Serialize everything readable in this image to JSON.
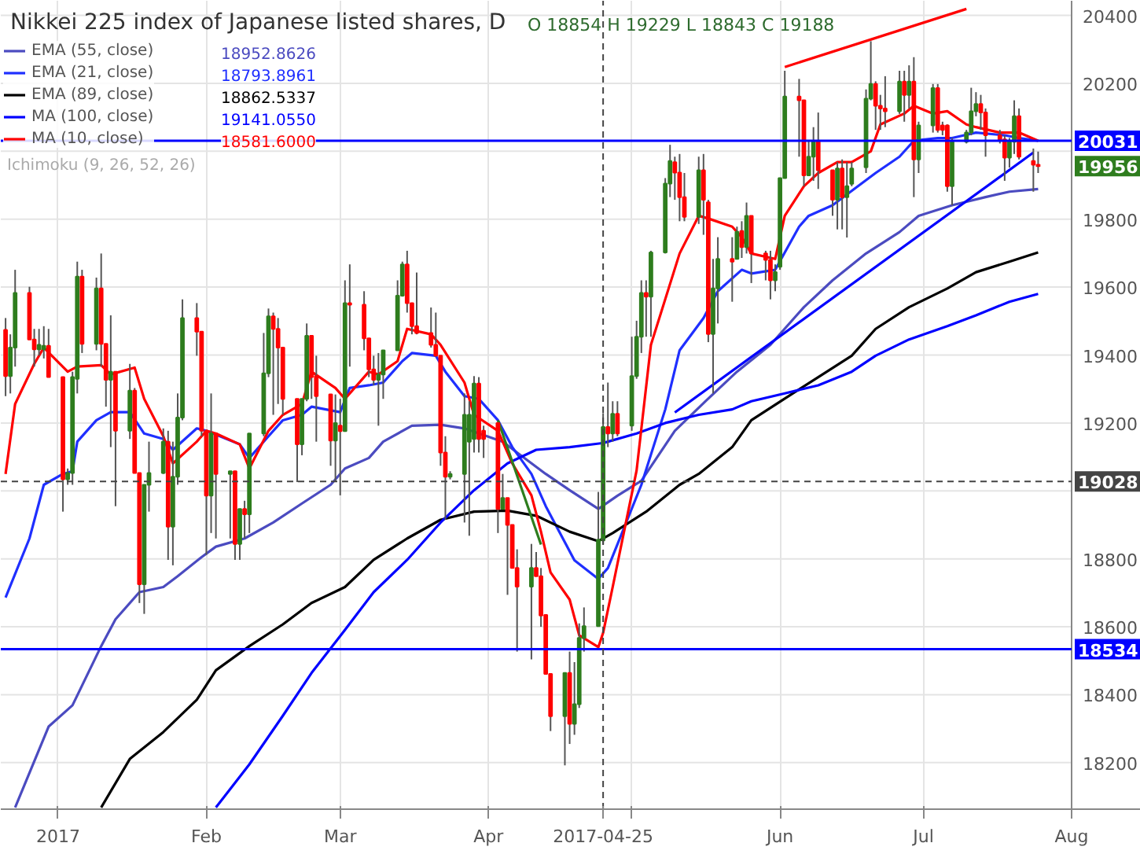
{
  "chart_data": {
    "type": "candlestick",
    "title": "Nikkei 225 index of Japanese listed shares, D",
    "x": [
      "2016-12-21",
      "2016-12-22",
      "2016-12-23",
      "2016-12-26",
      "2016-12-27",
      "2016-12-28",
      "2016-12-29",
      "2016-12-30",
      "2017-01-02",
      "2017-01-03",
      "2017-01-04",
      "2017-01-05",
      "2017-01-06",
      "2017-01-09",
      "2017-01-10",
      "2017-01-11",
      "2017-01-12",
      "2017-01-13",
      "2017-01-16",
      "2017-01-17",
      "2017-01-18",
      "2017-01-19",
      "2017-01-20",
      "2017-01-23",
      "2017-01-24",
      "2017-01-25",
      "2017-01-26",
      "2017-01-27",
      "2017-01-30",
      "2017-01-31",
      "2017-02-01",
      "2017-02-02",
      "2017-02-03",
      "2017-02-06",
      "2017-02-07",
      "2017-02-08",
      "2017-02-09",
      "2017-02-10",
      "2017-02-13",
      "2017-02-14",
      "2017-02-15",
      "2017-02-16",
      "2017-02-17",
      "2017-02-20",
      "2017-02-21",
      "2017-02-22",
      "2017-02-23",
      "2017-02-24",
      "2017-02-27",
      "2017-02-28",
      "2017-03-01",
      "2017-03-02",
      "2017-03-03",
      "2017-03-06",
      "2017-03-07",
      "2017-03-08",
      "2017-03-09",
      "2017-03-10",
      "2017-03-13",
      "2017-03-14",
      "2017-03-15",
      "2017-03-16",
      "2017-03-17",
      "2017-03-20",
      "2017-03-21",
      "2017-03-22",
      "2017-03-23",
      "2017-03-24",
      "2017-03-27",
      "2017-03-28",
      "2017-03-29",
      "2017-03-30",
      "2017-03-31",
      "2017-04-03",
      "2017-04-04",
      "2017-04-05",
      "2017-04-06",
      "2017-04-07",
      "2017-04-10",
      "2017-04-11",
      "2017-04-12",
      "2017-04-13",
      "2017-04-14",
      "2017-04-17",
      "2017-04-18",
      "2017-04-19",
      "2017-04-20",
      "2017-04-21",
      "2017-04-24",
      "2017-04-25",
      "2017-04-26",
      "2017-04-27",
      "2017-04-28",
      "2017-05-01",
      "2017-05-02",
      "2017-05-03",
      "2017-05-04",
      "2017-05-05",
      "2017-05-08",
      "2017-05-09",
      "2017-05-10",
      "2017-05-11",
      "2017-05-12",
      "2017-05-15",
      "2017-05-16",
      "2017-05-17",
      "2017-05-18",
      "2017-05-19",
      "2017-05-22",
      "2017-05-23",
      "2017-05-24",
      "2017-05-25",
      "2017-05-26",
      "2017-05-29",
      "2017-05-30",
      "2017-05-31",
      "2017-06-01",
      "2017-06-02",
      "2017-06-05",
      "2017-06-06",
      "2017-06-07",
      "2017-06-08",
      "2017-06-09",
      "2017-06-12",
      "2017-06-13",
      "2017-06-14",
      "2017-06-15",
      "2017-06-16",
      "2017-06-19",
      "2017-06-20",
      "2017-06-21",
      "2017-06-22",
      "2017-06-23",
      "2017-06-26",
      "2017-06-27",
      "2017-06-28",
      "2017-06-29",
      "2017-06-30",
      "2017-07-03",
      "2017-07-04",
      "2017-07-05",
      "2017-07-06",
      "2017-07-07",
      "2017-07-10",
      "2017-07-11",
      "2017-07-12",
      "2017-07-13",
      "2017-07-14",
      "2017-07-17",
      "2017-07-18",
      "2017-07-19",
      "2017-07-20",
      "2017-07-21",
      "2017-07-24",
      "2017-07-25"
    ],
    "ohlc": [
      [
        19474,
        19509,
        19279,
        19338
      ],
      [
        19338,
        19461,
        19287,
        19422
      ],
      [
        19422,
        19651,
        19366,
        19583
      ],
      [
        19583,
        19601,
        19446,
        19446
      ],
      [
        19446,
        19477,
        19366,
        19417
      ],
      [
        19417,
        19477,
        19398,
        19430
      ],
      [
        19417,
        19485,
        19390,
        19427
      ],
      [
        19427,
        19477,
        19335,
        19335
      ],
      [
        19335,
        19335,
        18939,
        19034
      ],
      [
        19034,
        19066,
        19018,
        19053
      ],
      [
        19053,
        19351,
        19018,
        19335
      ],
      [
        19330,
        19675,
        19287,
        19631
      ],
      [
        19631,
        19651,
        19406,
        19433
      ],
      [
        19433,
        19628,
        19414,
        19596
      ],
      [
        19596,
        19699,
        19366,
        19433
      ],
      [
        19433,
        19433,
        19248,
        19327
      ],
      [
        19327,
        19517,
        19129,
        19351
      ],
      [
        19351,
        19351,
        18955,
        19177
      ],
      [
        19177,
        19374,
        19153,
        19295
      ],
      [
        19295,
        19303,
        19053,
        19053
      ],
      [
        19053,
        19053,
        18670,
        18725
      ],
      [
        18725,
        19018,
        18638,
        19018
      ],
      [
        19018,
        19145,
        18939,
        19053
      ],
      [
        19053,
        19184,
        19050,
        19145
      ],
      [
        19145,
        19177,
        18797,
        18895
      ],
      [
        18895,
        19145,
        18781,
        19042
      ],
      [
        19042,
        19287,
        19018,
        19216
      ],
      [
        19216,
        19564,
        19208,
        19509
      ],
      [
        19509,
        19553,
        19398,
        19469
      ],
      [
        19469,
        19469,
        19161,
        19177
      ],
      [
        19177,
        19177,
        18812,
        18986
      ],
      [
        18986,
        19287,
        18876,
        19169
      ],
      [
        19169,
        19169,
        18860,
        19050
      ],
      [
        19050,
        19058,
        18860,
        19058
      ],
      [
        19058,
        19058,
        18797,
        18844
      ],
      [
        18844,
        18947,
        18797,
        18947
      ],
      [
        18947,
        18971,
        18860,
        18931
      ],
      [
        18931,
        19169,
        18876,
        19169
      ],
      [
        19169,
        19465,
        19161,
        19346
      ],
      [
        19346,
        19537,
        19335,
        19514
      ],
      [
        19514,
        19525,
        19224,
        19477
      ],
      [
        19477,
        19509,
        19256,
        19422
      ],
      [
        19422,
        19422,
        19224,
        19271
      ],
      [
        19271,
        19271,
        19026,
        19137
      ],
      [
        19137,
        19271,
        19105,
        19271
      ],
      [
        19271,
        19493,
        19264,
        19457
      ],
      [
        19457,
        19457,
        19271,
        19335
      ],
      [
        19338,
        19398,
        19145,
        19279
      ],
      [
        19284,
        19284,
        19074,
        19148
      ],
      [
        19148,
        19284,
        19026,
        19200
      ],
      [
        19192,
        19271,
        18987,
        19176
      ],
      [
        19176,
        19620,
        19176,
        19553
      ],
      [
        19553,
        19667,
        19366,
        19548
      ],
      [
        19548,
        19588,
        19414,
        19449
      ],
      [
        19449,
        19449,
        19335,
        19358
      ],
      [
        19358,
        19398,
        19311,
        19327
      ],
      [
        19327,
        19406,
        19192,
        19343
      ],
      [
        19343,
        19414,
        19271,
        19414
      ],
      [
        19414,
        19620,
        19414,
        19575
      ],
      [
        19575,
        19675,
        19572,
        19667
      ],
      [
        19667,
        19707,
        19525,
        19553
      ],
      [
        19553,
        19553,
        19461,
        19485
      ],
      [
        19485,
        19643,
        19461,
        19465
      ],
      [
        19465,
        19540,
        19422,
        19430
      ],
      [
        19430,
        19525,
        19395,
        19398
      ],
      [
        19398,
        19398,
        19074,
        19113
      ],
      [
        19113,
        19161,
        18915,
        19042
      ],
      [
        19042,
        19058,
        19034,
        19050
      ],
      [
        19050,
        19287,
        18907,
        19224
      ],
      [
        19145,
        19264,
        18868,
        19224
      ],
      [
        19153,
        19338,
        19113,
        19316
      ],
      [
        19316,
        19335,
        19113,
        19153
      ],
      [
        19177,
        19192,
        19097,
        19153
      ],
      [
        19200,
        19200,
        18876,
        18947
      ],
      [
        18947,
        19050,
        18947,
        18979
      ],
      [
        18979,
        18979,
        18694,
        18900
      ],
      [
        18900,
        18900,
        18773,
        18773
      ],
      [
        18773,
        18828,
        18527,
        18718
      ],
      [
        18718,
        18844,
        18504,
        18773
      ],
      [
        18773,
        18820,
        18749,
        18749
      ],
      [
        18749,
        18773,
        18600,
        18633
      ],
      [
        18635,
        18635,
        18461,
        18461
      ],
      [
        18461,
        18461,
        18293,
        18337
      ],
      [
        18337,
        18464,
        18192,
        18464
      ],
      [
        18464,
        18527,
        18255,
        18314
      ],
      [
        18314,
        18496,
        18282,
        18372
      ],
      [
        18372,
        18610,
        18361,
        18567
      ],
      [
        18567,
        18657,
        18527,
        18602
      ],
      [
        18602,
        18997,
        18602,
        18856
      ],
      [
        18854,
        19229,
        18843,
        19188
      ],
      [
        19188,
        19319,
        19129,
        19169
      ],
      [
        19169,
        19264,
        19145,
        19227
      ],
      [
        19227,
        19264,
        19161,
        19169
      ],
      [
        19192,
        19454,
        19177,
        19338
      ],
      [
        19338,
        19501,
        19330,
        19454
      ],
      [
        19454,
        19620,
        19406,
        19583
      ],
      [
        19583,
        19620,
        19454,
        19572
      ],
      [
        19572,
        19707,
        19454,
        19702
      ],
      [
        19702,
        19921,
        19699,
        19905
      ],
      [
        19905,
        20019,
        19865,
        19971
      ],
      [
        19968,
        19984,
        19857,
        19937
      ],
      [
        19937,
        19992,
        19794,
        19865
      ],
      [
        19865,
        19936,
        19794,
        19807
      ],
      [
        19807,
        19984,
        19786,
        19944
      ],
      [
        19944,
        19992,
        19754,
        19857
      ],
      [
        19850,
        19857,
        19438,
        19462
      ],
      [
        19462,
        19683,
        19287,
        19596
      ],
      [
        19596,
        19747,
        19493,
        19683
      ],
      [
        19683,
        19747,
        19557,
        19675
      ],
      [
        19683,
        19778,
        19683,
        19763
      ],
      [
        19765,
        19794,
        19686,
        19718
      ],
      [
        19718,
        19849,
        19699,
        19810
      ],
      [
        19810,
        19810,
        19612,
        19699
      ],
      [
        19699,
        19707,
        19620,
        19680
      ],
      [
        19680,
        19707,
        19564,
        19620
      ],
      [
        19620,
        19667,
        19588,
        19644
      ],
      [
        19660,
        19921,
        19651,
        19921
      ],
      [
        19921,
        20237,
        19921,
        20161
      ],
      [
        20161,
        20213,
        19984,
        20150
      ],
      [
        20150,
        20150,
        19897,
        19929
      ],
      [
        19929,
        20031,
        19929,
        19984
      ],
      [
        19984,
        20071,
        19913,
        20028
      ],
      [
        20028,
        20114,
        19889,
        19944
      ],
      [
        19944,
        19944,
        19810,
        19857
      ],
      [
        19857,
        19968,
        19770,
        19949
      ],
      [
        19949,
        19976,
        19770,
        19865
      ],
      [
        19865,
        19968,
        19746,
        19897
      ],
      [
        19904,
        19968,
        19897,
        19949
      ],
      [
        19953,
        20182,
        19936,
        20155
      ],
      [
        20155,
        20324,
        20150,
        20198
      ],
      [
        20198,
        20206,
        20063,
        20134
      ],
      [
        20134,
        20166,
        20063,
        20126
      ],
      [
        20126,
        20221,
        20071,
        20118
      ],
      [
        20118,
        20237,
        20110,
        20205
      ],
      [
        20205,
        20237,
        20087,
        20166
      ],
      [
        20166,
        20253,
        20126,
        20205
      ],
      [
        20205,
        20277,
        19865,
        19976
      ],
      [
        19976,
        20087,
        19936,
        20076
      ],
      [
        20076,
        20198,
        20055,
        20186
      ],
      [
        20186,
        20198,
        20055,
        20063
      ],
      [
        20076,
        20087,
        20047,
        20063
      ],
      [
        20076,
        20079,
        19881,
        19897
      ],
      [
        19897,
        20039,
        19841,
        20028
      ],
      [
        20028,
        20063,
        20023,
        20055
      ],
      [
        20055,
        20187,
        20047,
        20118
      ],
      [
        20118,
        20174,
        20103,
        20139
      ],
      [
        20139,
        20166,
        20063,
        20114
      ],
      [
        20114,
        20126,
        19984,
        20047
      ],
      [
        20047,
        20063,
        20023,
        20031
      ],
      [
        20035,
        20047,
        19913,
        19981
      ],
      [
        19981,
        20039,
        19952,
        20028
      ],
      [
        20028,
        20150,
        19992,
        20103
      ],
      [
        20103,
        20126,
        19976,
        19984
      ],
      [
        19971,
        20008,
        19881,
        19960
      ],
      [
        19960,
        19999,
        19936,
        19956
      ]
    ],
    "xlim": [
      "2016-12-20",
      "2017-08-01"
    ],
    "xticks": [
      {
        "value": "2017-01-01",
        "label": "2017"
      },
      {
        "value": "2017-02-01",
        "label": "Feb"
      },
      {
        "value": "2017-03-01",
        "label": "Mar"
      },
      {
        "value": "2017-04-01",
        "label": "Apr"
      },
      {
        "value": "2017-05-01",
        "label": null
      },
      {
        "value": "2017-06-01",
        "label": "Jun"
      },
      {
        "value": "2017-07-01",
        "label": "Jul"
      },
      {
        "value": "2017-08-01",
        "label": "Aug"
      }
    ],
    "ylim": [
      18063,
      20443
    ],
    "yticks": [
      18200,
      18400,
      18600,
      18800,
      {
        "value": 19000,
        "label": null
      },
      19200,
      19400,
      19600,
      19800,
      {
        "value": 20000,
        "label": null
      },
      20200,
      20400
    ],
    "series": [
      {
        "name": "EMA (55, close)",
        "type": "line",
        "color": "#4b4bc0",
        "x": [
          "2016-12-23",
          "2016-12-30",
          "2017-01-04",
          "2017-01-10",
          "2017-01-13",
          "2017-01-18",
          "2017-01-23",
          "2017-01-26",
          "2017-01-31",
          "2017-02-03",
          "2017-02-09",
          "2017-02-15",
          "2017-02-21",
          "2017-02-27",
          "2017-03-02",
          "2017-03-07",
          "2017-03-10",
          "2017-03-16",
          "2017-03-22",
          "2017-03-27",
          "2017-04-04",
          "2017-04-07",
          "2017-04-13",
          "2017-04-18",
          "2017-04-24",
          "2017-04-28",
          "2017-05-03",
          "2017-05-10",
          "2017-05-17",
          "2017-05-23",
          "2017-05-30",
          "2017-06-06",
          "2017-06-12",
          "2017-06-19",
          "2017-06-26",
          "2017-06-30",
          "2017-07-07",
          "2017-07-14",
          "2017-07-19",
          "2017-07-25"
        ],
        "values": [
          18068,
          18306,
          18369,
          18543,
          18622,
          18702,
          18717,
          18749,
          18805,
          18836,
          18860,
          18907,
          18963,
          19018,
          19066,
          19097,
          19145,
          19192,
          19195,
          19184,
          19145,
          19113,
          19050,
          19002,
          18947,
          18986,
          19030,
          19177,
          19272,
          19351,
          19430,
          19541,
          19620,
          19699,
          19762,
          19810,
          19841,
          19865,
          19881,
          19889
        ]
      },
      {
        "name": "EMA (21, close)",
        "type": "line",
        "color": "#1f2fff",
        "x": [
          "2016-12-21",
          "2016-12-26",
          "2016-12-29",
          "2017-01-02",
          "2017-01-04",
          "2017-01-05",
          "2017-01-09",
          "2017-01-12",
          "2017-01-16",
          "2017-01-19",
          "2017-01-23",
          "2017-01-25",
          "2017-01-30",
          "2017-02-01",
          "2017-02-08",
          "2017-02-10",
          "2017-02-14",
          "2017-02-17",
          "2017-02-21",
          "2017-02-23",
          "2017-03-01",
          "2017-03-03",
          "2017-03-07",
          "2017-03-10",
          "2017-03-14",
          "2017-03-16",
          "2017-03-21",
          "2017-03-23",
          "2017-03-27",
          "2017-03-30",
          "2017-04-03",
          "2017-04-06",
          "2017-04-10",
          "2017-04-13",
          "2017-04-19",
          "2017-04-24",
          "2017-04-26",
          "2017-05-03",
          "2017-05-08",
          "2017-05-11",
          "2017-05-16",
          "2017-05-19",
          "2017-05-24",
          "2017-05-26",
          "2017-05-31",
          "2017-06-05",
          "2017-06-07",
          "2017-06-12",
          "2017-06-15",
          "2017-06-21",
          "2017-06-26",
          "2017-06-29",
          "2017-07-04",
          "2017-07-07",
          "2017-07-12",
          "2017-07-18",
          "2017-07-21",
          "2017-07-25"
        ],
        "values": [
          18686,
          18860,
          19018,
          19050,
          19058,
          19145,
          19208,
          19232,
          19232,
          19169,
          19153,
          19121,
          19184,
          19177,
          19137,
          19097,
          19161,
          19208,
          19224,
          19248,
          19232,
          19303,
          19311,
          19319,
          19382,
          19406,
          19398,
          19351,
          19279,
          19271,
          19208,
          19129,
          19050,
          18955,
          18796,
          18741,
          18773,
          19018,
          19240,
          19414,
          19509,
          19588,
          19651,
          19640,
          19651,
          19778,
          19810,
          19841,
          19873,
          19936,
          19984,
          20031,
          20039,
          20039,
          20055,
          20047,
          20039,
          20031
        ]
      },
      {
        "name": "EMA (89, close)",
        "type": "line",
        "color": "#000000",
        "x": [
          "2017-01-10",
          "2017-01-16",
          "2017-01-23",
          "2017-01-30",
          "2017-02-03",
          "2017-02-10",
          "2017-02-17",
          "2017-02-23",
          "2017-03-02",
          "2017-03-08",
          "2017-03-15",
          "2017-03-22",
          "2017-03-29",
          "2017-04-05",
          "2017-04-11",
          "2017-04-18",
          "2017-04-24",
          "2017-04-27",
          "2017-05-04",
          "2017-05-11",
          "2017-05-15",
          "2017-05-22",
          "2017-05-26",
          "2017-06-02",
          "2017-06-09",
          "2017-06-16",
          "2017-06-21",
          "2017-06-28",
          "2017-07-06",
          "2017-07-12",
          "2017-07-19",
          "2017-07-25"
        ],
        "values": [
          18068,
          18211,
          18290,
          18385,
          18472,
          18543,
          18607,
          18670,
          18717,
          18797,
          18860,
          18915,
          18939,
          18942,
          18927,
          18880,
          18852,
          18876,
          18939,
          19018,
          19050,
          19129,
          19208,
          19272,
          19335,
          19398,
          19477,
          19541,
          19596,
          19644,
          19675,
          19702
        ]
      },
      {
        "name": "MA (100, close)",
        "type": "line",
        "color": "#0000ff",
        "x": [
          "2017-02-03",
          "2017-02-10",
          "2017-02-17",
          "2017-02-23",
          "2017-03-02",
          "2017-03-08",
          "2017-03-15",
          "2017-03-22",
          "2017-03-29",
          "2017-04-05",
          "2017-04-11",
          "2017-04-18",
          "2017-04-25",
          "2017-05-02",
          "2017-05-08",
          "2017-05-15",
          "2017-05-22",
          "2017-05-26",
          "2017-06-02",
          "2017-06-09",
          "2017-06-16",
          "2017-06-21",
          "2017-06-28",
          "2017-07-06",
          "2017-07-12",
          "2017-07-19",
          "2017-07-25"
        ],
        "values": [
          18068,
          18195,
          18338,
          18464,
          18591,
          18702,
          18797,
          18907,
          19002,
          19081,
          19121,
          19129,
          19141,
          19169,
          19200,
          19224,
          19240,
          19264,
          19287,
          19311,
          19351,
          19398,
          19446,
          19485,
          19517,
          19557,
          19580
        ]
      },
      {
        "name": "MA (10, close)",
        "type": "line",
        "color": "#ff0000",
        "x": [
          "2016-12-21",
          "2016-12-23",
          "2016-12-27",
          "2016-12-29",
          "2017-01-03",
          "2017-01-05",
          "2017-01-10",
          "2017-01-12",
          "2017-01-17",
          "2017-01-19",
          "2017-01-23",
          "2017-01-25",
          "2017-01-30",
          "2017-02-01",
          "2017-02-03",
          "2017-02-08",
          "2017-02-10",
          "2017-02-14",
          "2017-02-17",
          "2017-02-21",
          "2017-02-23",
          "2017-02-28",
          "2017-03-02",
          "2017-03-07",
          "2017-03-09",
          "2017-03-13",
          "2017-03-15",
          "2017-03-20",
          "2017-03-22",
          "2017-03-27",
          "2017-03-29",
          "2017-04-03",
          "2017-04-06",
          "2017-04-10",
          "2017-04-12",
          "2017-04-14",
          "2017-04-18",
          "2017-04-20",
          "2017-04-24",
          "2017-04-25",
          "2017-04-27",
          "2017-05-02",
          "2017-05-05",
          "2017-05-11",
          "2017-05-15",
          "2017-05-17",
          "2017-05-22",
          "2017-05-24",
          "2017-05-26",
          "2017-05-31",
          "2017-06-02",
          "2017-06-06",
          "2017-06-09",
          "2017-06-13",
          "2017-06-16",
          "2017-06-20",
          "2017-06-22",
          "2017-06-27",
          "2017-06-29",
          "2017-07-03",
          "2017-07-06",
          "2017-07-10",
          "2017-07-12",
          "2017-07-17",
          "2017-07-19",
          "2017-07-21",
          "2017-07-25"
        ],
        "values": [
          19050,
          19256,
          19374,
          19422,
          19351,
          19366,
          19370,
          19343,
          19363,
          19271,
          19161,
          19081,
          19145,
          19177,
          19169,
          19137,
          19066,
          19177,
          19224,
          19256,
          19351,
          19303,
          19271,
          19351,
          19343,
          19382,
          19477,
          19461,
          19430,
          19319,
          19224,
          19177,
          19081,
          18987,
          18880,
          18760,
          18680,
          18575,
          18540,
          18582,
          18717,
          19060,
          19430,
          19699,
          19810,
          19802,
          19778,
          19747,
          19699,
          19683,
          19810,
          19897,
          19936,
          19968,
          19968,
          20000,
          20079,
          20111,
          20134,
          20111,
          20118,
          20079,
          20071,
          20055,
          20055,
          20055,
          20031
        ]
      },
      {
        "type": "line",
        "color": "#ff0000",
        "x": [
          "2017-06-02",
          "2017-07-10"
        ],
        "values": [
          20248,
          20419
        ]
      },
      {
        "type": "line",
        "color": "#0000ff",
        "x": [
          "2017-05-10",
          "2017-07-24"
        ],
        "values": [
          19231,
          19996
        ]
      },
      {
        "type": "line",
        "color": "#2e7d1e",
        "x": [
          "2017-04-03",
          "2017-04-12"
        ],
        "values": [
          19208,
          18842
        ]
      }
    ],
    "ref_lines": [
      {
        "axis": "y",
        "value": 20031,
        "label": "20031",
        "color": "#0000ff"
      },
      {
        "axis": "y",
        "value": 18534,
        "label": "18534",
        "color": "#0000ff"
      },
      {
        "axis": "y",
        "value": 19028,
        "label": "19028",
        "color": "#444444",
        "line_style": "dashed"
      },
      {
        "axis": "x",
        "value": "2017-04-25",
        "label": "2017-04-25",
        "color": "#444444",
        "line_style": "dashed"
      }
    ],
    "annotations": [
      "O 18854 H 19229 L 18843 C 19188",
      "18952.8626",
      "18793.8961",
      "18862.5337",
      "19141.0550",
      "18581.6000",
      "Ichimoku (9, 26, 52, 26)",
      {
        "text": "19956",
        "y": 19956
      }
    ],
    "grid": true,
    "legend": "top left"
  }
}
